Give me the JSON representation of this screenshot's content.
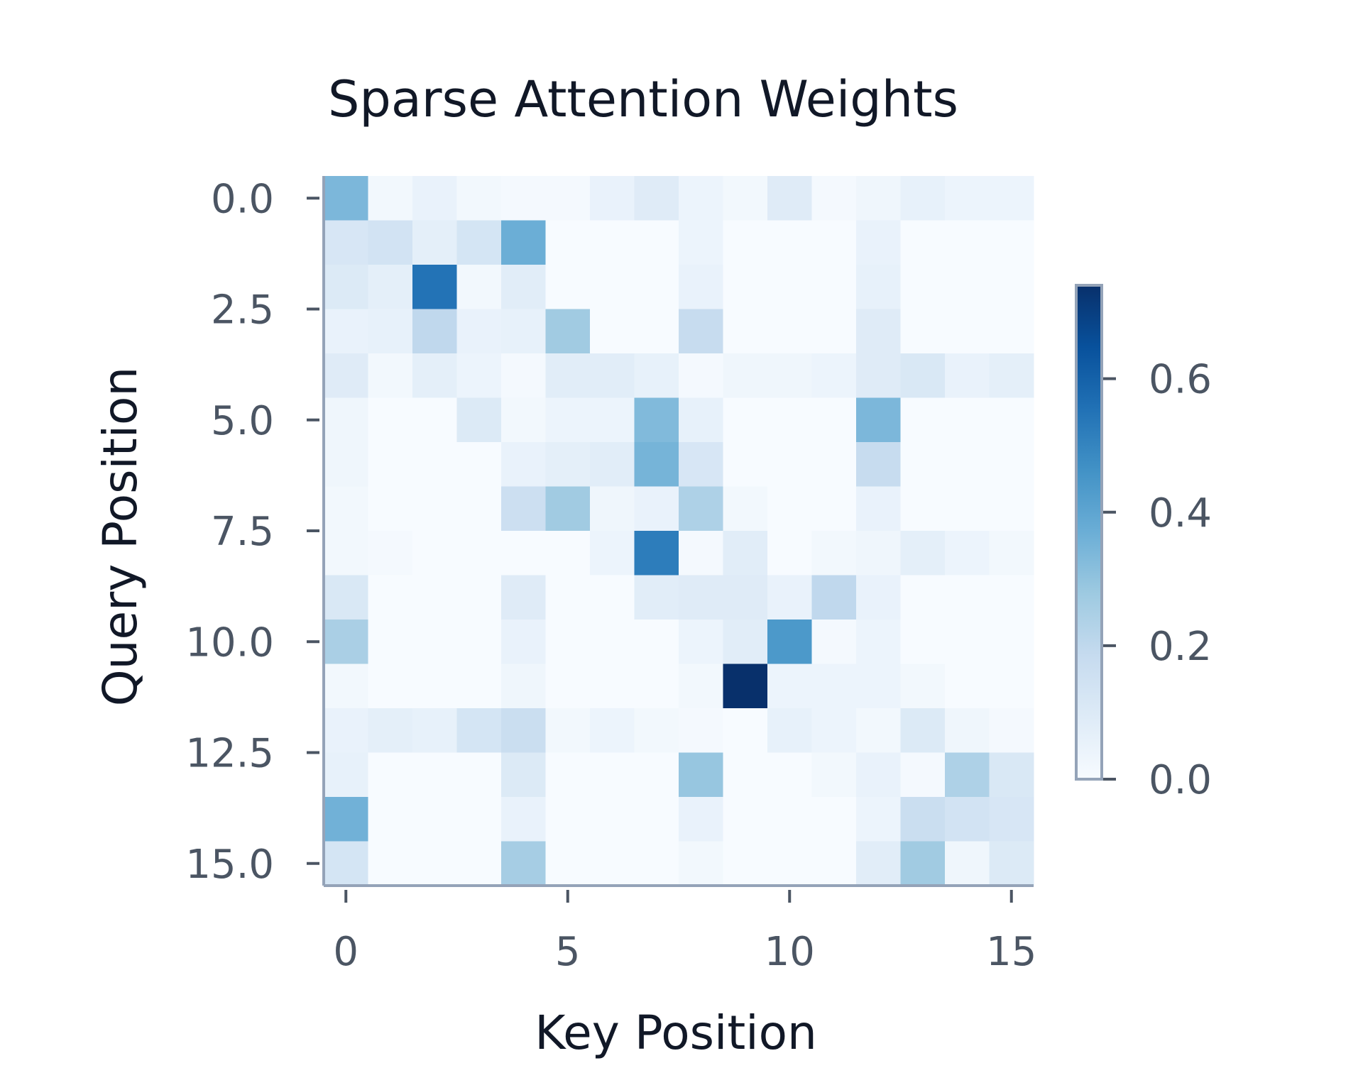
{
  "chart_data": {
    "type": "heatmap",
    "title": "Sparse Attention Weights",
    "xlabel": "Key Position",
    "ylabel": "Query Position",
    "colormap": "Blues",
    "vmin": 0.0,
    "vmax": 0.74,
    "x_ticks": [
      0,
      5,
      10,
      15
    ],
    "x_tick_labels": [
      "0",
      "5",
      "10",
      "15"
    ],
    "y_ticks": [
      0,
      2.5,
      5,
      7.5,
      10,
      12.5,
      15
    ],
    "y_tick_labels": [
      "0.0",
      "2.5",
      "5.0",
      "7.5",
      "10.0",
      "12.5",
      "15.0"
    ],
    "colorbar_ticks": [
      0.0,
      0.2,
      0.4,
      0.6
    ],
    "colorbar_tick_labels": [
      "0.0",
      "0.2",
      "0.4",
      "0.6"
    ],
    "colors": {
      "title": "#111827",
      "tick_label": "#4b5563",
      "spine": "#94a3b8"
    },
    "rows": 16,
    "cols": 16,
    "values": [
      [
        0.34,
        0.02,
        0.05,
        0.02,
        0.01,
        0.01,
        0.05,
        0.09,
        0.04,
        0.02,
        0.09,
        0.01,
        0.03,
        0.06,
        0.04,
        0.04
      ],
      [
        0.12,
        0.14,
        0.07,
        0.13,
        0.37,
        0.0,
        0.0,
        0.0,
        0.04,
        0.0,
        0.0,
        0.0,
        0.05,
        0.0,
        0.0,
        0.0
      ],
      [
        0.1,
        0.07,
        0.55,
        0.02,
        0.08,
        0.0,
        0.0,
        0.0,
        0.05,
        0.0,
        0.0,
        0.0,
        0.06,
        0.0,
        0.0,
        0.0
      ],
      [
        0.05,
        0.06,
        0.2,
        0.05,
        0.06,
        0.27,
        0.0,
        0.0,
        0.18,
        0.0,
        0.0,
        0.0,
        0.09,
        0.0,
        0.0,
        0.0
      ],
      [
        0.09,
        0.02,
        0.07,
        0.04,
        0.01,
        0.08,
        0.08,
        0.06,
        0.01,
        0.03,
        0.03,
        0.04,
        0.09,
        0.11,
        0.05,
        0.07
      ],
      [
        0.03,
        0.0,
        0.0,
        0.1,
        0.02,
        0.04,
        0.04,
        0.33,
        0.06,
        0.0,
        0.0,
        0.0,
        0.34,
        0.0,
        0.0,
        0.0
      ],
      [
        0.03,
        0.0,
        0.0,
        0.0,
        0.05,
        0.07,
        0.08,
        0.35,
        0.12,
        0.0,
        0.0,
        0.0,
        0.18,
        0.0,
        0.0,
        0.0
      ],
      [
        0.02,
        0.0,
        0.0,
        0.0,
        0.16,
        0.27,
        0.03,
        0.05,
        0.24,
        0.02,
        0.0,
        0.0,
        0.05,
        0.0,
        0.0,
        0.0
      ],
      [
        0.02,
        0.01,
        0.0,
        0.0,
        0.0,
        0.0,
        0.04,
        0.52,
        0.01,
        0.08,
        0.0,
        0.02,
        0.03,
        0.07,
        0.04,
        0.02
      ],
      [
        0.11,
        0.0,
        0.0,
        0.0,
        0.09,
        0.0,
        0.0,
        0.08,
        0.09,
        0.09,
        0.05,
        0.2,
        0.05,
        0.0,
        0.0,
        0.0
      ],
      [
        0.25,
        0.0,
        0.0,
        0.0,
        0.05,
        0.0,
        0.0,
        0.0,
        0.04,
        0.08,
        0.44,
        0.01,
        0.04,
        0.0,
        0.0,
        0.0
      ],
      [
        0.02,
        0.0,
        0.0,
        0.0,
        0.03,
        0.0,
        0.0,
        0.0,
        0.02,
        0.74,
        0.04,
        0.04,
        0.04,
        0.02,
        0.0,
        0.0
      ],
      [
        0.05,
        0.07,
        0.06,
        0.13,
        0.17,
        0.02,
        0.04,
        0.02,
        0.01,
        0.0,
        0.06,
        0.04,
        0.02,
        0.1,
        0.03,
        0.01
      ],
      [
        0.06,
        0.0,
        0.0,
        0.0,
        0.1,
        0.0,
        0.0,
        0.0,
        0.29,
        0.0,
        0.0,
        0.02,
        0.05,
        0.01,
        0.24,
        0.11
      ],
      [
        0.36,
        0.0,
        0.0,
        0.0,
        0.05,
        0.0,
        0.0,
        0.0,
        0.05,
        0.0,
        0.0,
        0.0,
        0.04,
        0.17,
        0.14,
        0.12
      ],
      [
        0.13,
        0.0,
        0.0,
        0.0,
        0.26,
        0.0,
        0.0,
        0.0,
        0.02,
        0.0,
        0.0,
        0.0,
        0.08,
        0.27,
        0.03,
        0.1
      ]
    ]
  }
}
